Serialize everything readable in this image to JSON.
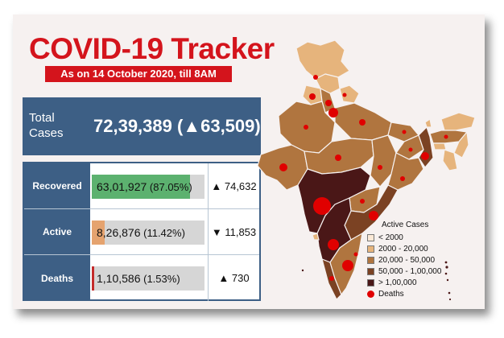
{
  "header": {
    "title": "COVID-19 Tracker",
    "subtitle": "As on 14 October 2020, till 8AM"
  },
  "total": {
    "label": "Total Cases",
    "value": "72,39,389",
    "delta": "(▲63,509)"
  },
  "stats": [
    {
      "label": "Recovered",
      "value": "63,01,927",
      "percent": "(87.05%)",
      "share": 0.8705,
      "delta": "▲ 74,632",
      "color": "#5cb16f"
    },
    {
      "label": "Active",
      "value": "8,26,876",
      "percent": "(11.42%)",
      "share": 0.1142,
      "delta": "▼ 11,853",
      "color": "#e5a36f"
    },
    {
      "label": "Deaths",
      "value": "1,10,586",
      "percent": "(1.53%)",
      "share": 0.0153,
      "delta": "▲ 730",
      "color": "#c42b2b"
    }
  ],
  "legend": {
    "title": "Active Cases",
    "items": [
      {
        "label": "< 2000",
        "color": "#fbe9d6"
      },
      {
        "label": "2000 - 20,000",
        "color": "#e6b47c"
      },
      {
        "label": "20,000 - 50,000",
        "color": "#b0753f"
      },
      {
        "label": "50,000 - 1,00,000",
        "color": "#7b4223"
      },
      {
        "label": "> 1,00,000",
        "color": "#4a1717"
      }
    ],
    "deaths_label": "Deaths",
    "deaths_color": "#e00000"
  }
}
